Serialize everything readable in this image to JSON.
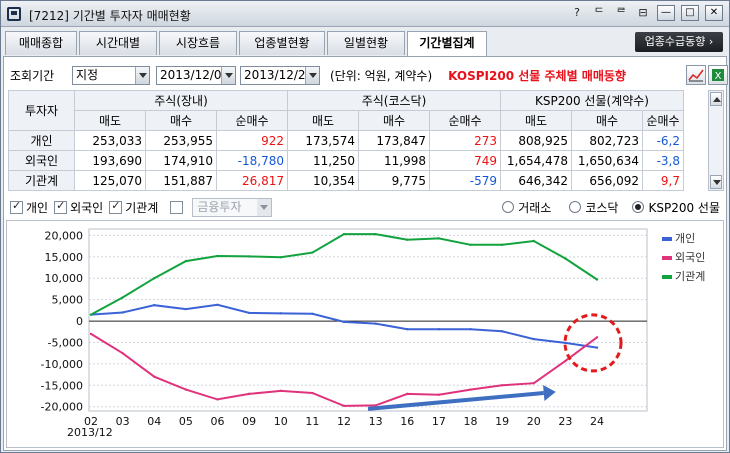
{
  "window": {
    "title": "[7212] 기간별 투자자 매매현황",
    "controls": [
      "?",
      "ᄃ",
      "ᄅ",
      "⊟"
    ]
  },
  "tabs": [
    "매매종합",
    "시간대별",
    "시장흐름",
    "업종별현황",
    "일별현황",
    "기간별집계"
  ],
  "active_tab": "기간별집계",
  "tab_right_button": "업종수급동향 ›",
  "query": {
    "label": "조회기간",
    "mode": "지정",
    "start_date": "2013/12/01",
    "end_date": "2013/12/24",
    "unit": "(단위: 억원, 계약수)",
    "highlight": "KOSPI200 선물 주체별 매매동향"
  },
  "table": {
    "investor_header": "투자자",
    "groups": [
      "주식(장내)",
      "주식(코스닥)",
      "KSP200 선물(계약수)"
    ],
    "subheaders": [
      "매도",
      "매수",
      "순매수",
      "매도",
      "매수",
      "순매수",
      "매도",
      "매수",
      "순매수"
    ],
    "rows": [
      {
        "name": "개인",
        "cells": [
          "253,033",
          "253,955",
          "922",
          "173,574",
          "173,847",
          "273",
          "808,925",
          "802,723",
          "-6,2"
        ]
      },
      {
        "name": "외국인",
        "cells": [
          "193,690",
          "174,910",
          "-18,780",
          "11,250",
          "11,998",
          "749",
          "1,654,478",
          "1,650,634",
          "-3,8"
        ]
      },
      {
        "name": "기관계",
        "cells": [
          "125,070",
          "151,887",
          "26,817",
          "10,354",
          "9,775",
          "-579",
          "646,342",
          "656,092",
          "9,7"
        ]
      }
    ]
  },
  "filters": {
    "checks": [
      {
        "label": "개인",
        "checked": true
      },
      {
        "label": "외국인",
        "checked": true
      },
      {
        "label": "기관계",
        "checked": true
      },
      {
        "label": "",
        "checked": false
      }
    ],
    "fin_select": "금융투자",
    "radios": [
      {
        "label": "거래소",
        "selected": false
      },
      {
        "label": "코스닥",
        "selected": false
      },
      {
        "label": "KSP200 선물",
        "selected": true
      }
    ]
  },
  "colors": {
    "individual": "#3b62d6",
    "foreign": "#e0337c",
    "institution": "#12a33f",
    "annotation_circle": "#e3191b",
    "arrow": "#3f6fc0"
  },
  "chart_data": {
    "type": "line",
    "x": [
      "02",
      "03",
      "04",
      "05",
      "06",
      "09",
      "10",
      "11",
      "12",
      "13",
      "16",
      "17",
      "18",
      "19",
      "20",
      "23",
      "24"
    ],
    "x_sublabel": "2013/12",
    "yticks": [
      "20,000",
      "15,000",
      "10,000",
      "5,000",
      "0",
      "-5,000",
      "-10,000",
      "-15,000",
      "-20,000"
    ],
    "ylim": [
      -21000,
      21500
    ],
    "grid": true,
    "legend_position": "right",
    "series": [
      {
        "name": "개인",
        "values": [
          1500,
          2000,
          3700,
          2800,
          3800,
          1900,
          1800,
          1700,
          -200,
          -600,
          -1900,
          -1900,
          -1900,
          -2400,
          -4200,
          -5100,
          -6200
        ]
      },
      {
        "name": "외국인",
        "values": [
          -3000,
          -7500,
          -13000,
          -16000,
          -18300,
          -17000,
          -16300,
          -16800,
          -19800,
          -19700,
          -17000,
          -17200,
          -16000,
          -15000,
          -14500,
          -9300,
          -3800
        ]
      },
      {
        "name": "기관계",
        "values": [
          1500,
          5500,
          10000,
          14000,
          15200,
          15100,
          14900,
          16000,
          20300,
          20300,
          19000,
          19300,
          17800,
          17800,
          18700,
          14600,
          9700
        ]
      }
    ]
  }
}
